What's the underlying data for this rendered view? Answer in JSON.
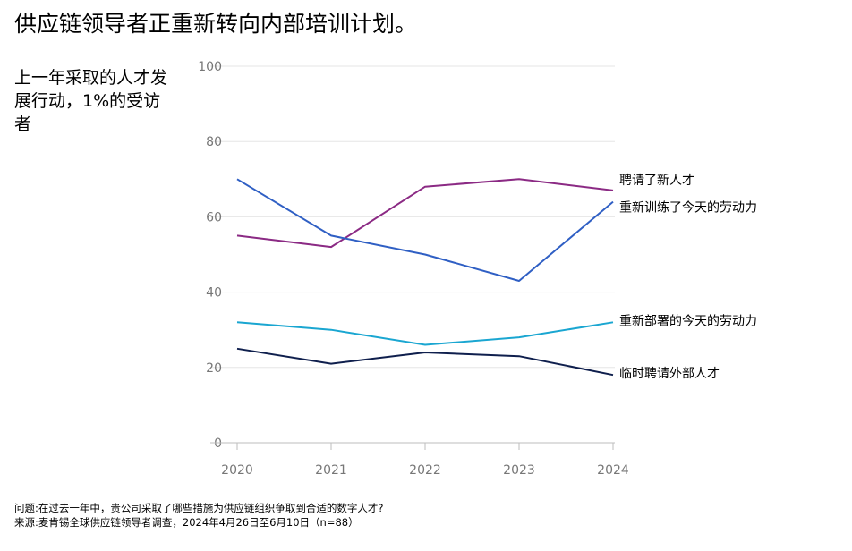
{
  "title": "供应链领导者正重新转向内部培训计划。",
  "subtitle": "上一年采取的人才发展行动，1%的受访者",
  "chart_data": {
    "type": "line",
    "title": "供应链领导者正重新转向内部培训计划。",
    "subtitle": "上一年采取的人才发展行动，1%的受访者",
    "xlabel": "",
    "ylabel": "",
    "x": [
      "2020",
      "2021",
      "2022",
      "2023",
      "2024"
    ],
    "ylim": [
      0,
      100
    ],
    "yticks": [
      0,
      20,
      40,
      60,
      80,
      100
    ],
    "grid": true,
    "legend": "inline-right",
    "series": [
      {
        "name": "聘请了新人才",
        "values": [
          55,
          52,
          68,
          70,
          67
        ],
        "color": "#8b2a84"
      },
      {
        "name": "重新训练了今天的劳动力",
        "values": [
          70,
          55,
          50,
          43,
          64
        ],
        "color": "#2f5fc4"
      },
      {
        "name": "重新部署的今天的劳动力",
        "values": [
          32,
          30,
          26,
          28,
          32
        ],
        "color": "#1aa6d1"
      },
      {
        "name": "临时聘请外部人才",
        "values": [
          25,
          21,
          24,
          23,
          18
        ],
        "color": "#0f1f4d"
      }
    ]
  },
  "footnote": {
    "question": "问题:在过去一年中，贵公司采取了哪些措施为供应链组织争取到合适的数字人才?",
    "source": "来源:麦肯锡全球供应链领导者调查，2024年4月26日至6月10日（n=88）"
  }
}
